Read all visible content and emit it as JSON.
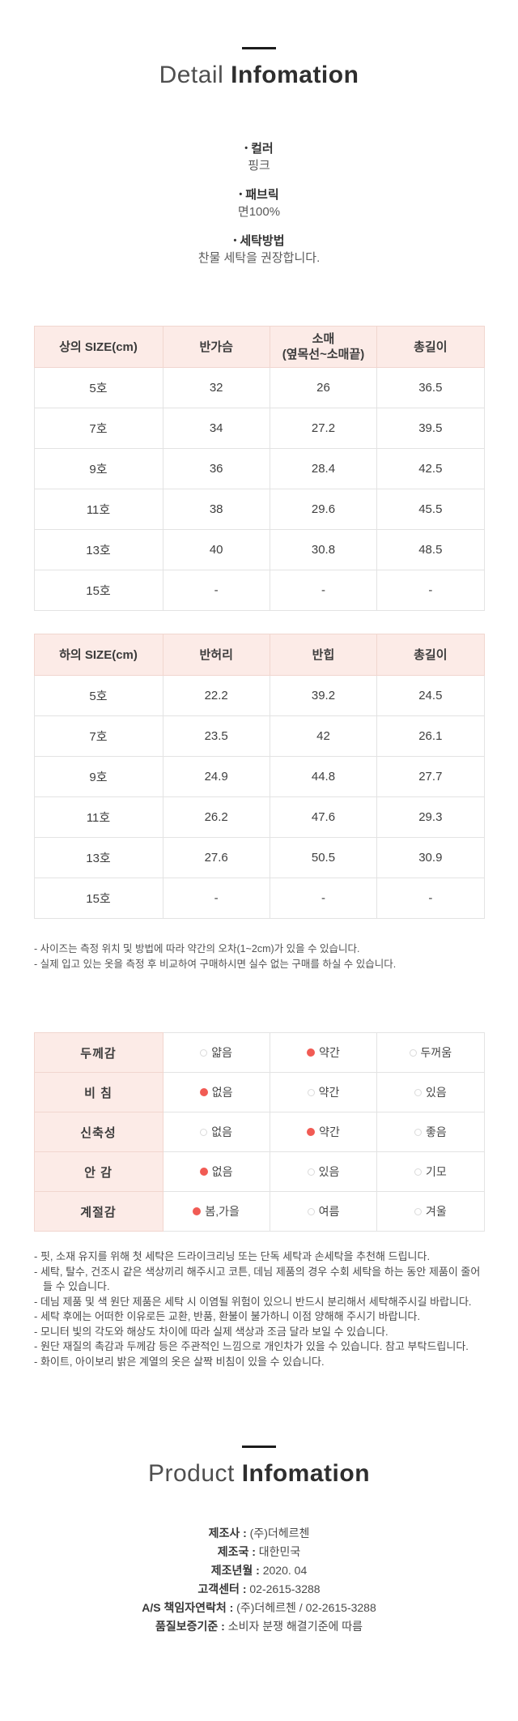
{
  "detail": {
    "title_light": "Detail",
    "title_bold": "Infomation",
    "bullet": "•",
    "specs": [
      {
        "label": "컬러",
        "value": "핑크"
      },
      {
        "label": "패브릭",
        "value": "면100%"
      },
      {
        "label": "세탁방법",
        "value": "찬물 세탁을 권장합니다."
      }
    ]
  },
  "size_tables": [
    {
      "headers": [
        "상의 SIZE(cm)",
        "반가슴",
        "소매\n(옆목선~소매끝)",
        "총길이"
      ],
      "rows": [
        [
          "5호",
          "32",
          "26",
          "36.5"
        ],
        [
          "7호",
          "34",
          "27.2",
          "39.5"
        ],
        [
          "9호",
          "36",
          "28.4",
          "42.5"
        ],
        [
          "11호",
          "38",
          "29.6",
          "45.5"
        ],
        [
          "13호",
          "40",
          "30.8",
          "48.5"
        ],
        [
          "15호",
          "-",
          "-",
          "-"
        ]
      ]
    },
    {
      "headers": [
        "하의 SIZE(cm)",
        "반허리",
        "반힙",
        "총길이"
      ],
      "rows": [
        [
          "5호",
          "22.2",
          "39.2",
          "24.5"
        ],
        [
          "7호",
          "23.5",
          "42",
          "26.1"
        ],
        [
          "9호",
          "24.9",
          "44.8",
          "27.7"
        ],
        [
          "11호",
          "26.2",
          "47.6",
          "29.3"
        ],
        [
          "13호",
          "27.6",
          "50.5",
          "30.9"
        ],
        [
          "15호",
          "-",
          "-",
          "-"
        ]
      ]
    }
  ],
  "size_notes": [
    "- 사이즈는 측정 위치 및 방법에 따라 약간의 오차(1~2cm)가 있을 수 있습니다.",
    "- 실제 입고 있는 옷을 측정 후 비교하여 구매하시면 실수 없는 구매를 하실 수 있습니다."
  ],
  "feature_table": {
    "rows": [
      {
        "label": "두께감",
        "options": [
          {
            "text": "얇음",
            "selected": false
          },
          {
            "text": "약간",
            "selected": true
          },
          {
            "text": "두꺼움",
            "selected": false
          }
        ]
      },
      {
        "label": "비 침",
        "options": [
          {
            "text": "없음",
            "selected": true
          },
          {
            "text": "약간",
            "selected": false
          },
          {
            "text": "있음",
            "selected": false
          }
        ]
      },
      {
        "label": "신축성",
        "options": [
          {
            "text": "없음",
            "selected": false
          },
          {
            "text": "약간",
            "selected": true
          },
          {
            "text": "좋음",
            "selected": false
          }
        ]
      },
      {
        "label": "안 감",
        "options": [
          {
            "text": "없음",
            "selected": true
          },
          {
            "text": "있음",
            "selected": false
          },
          {
            "text": "기모",
            "selected": false
          }
        ]
      },
      {
        "label": "계절감",
        "options": [
          {
            "text": "봄,가을",
            "selected": true
          },
          {
            "text": "여름",
            "selected": false
          },
          {
            "text": "겨울",
            "selected": false
          }
        ]
      }
    ]
  },
  "care_notes": [
    "- 핏, 소재 유지를 위해 첫 세탁은 드라이크리닝 또는 단독 세탁과 손세탁을 추천해 드립니다.",
    "- 세탁, 탈수, 건조시 같은 색상끼리 해주시고 코튼, 데님 제품의 경우 수회 세탁을 하는 동안 제품이 줄어들 수 있습니다.",
    "- 데님 제품 및 색 원단 제품은 세탁 시 이염될 위험이 있으니 반드시 분리해서 세탁해주시길 바랍니다.",
    "- 세탁 후에는 어떠한 이유로든 교환, 반품, 환불이 불가하니 이점 양해해 주시기 바랍니다.",
    "- 모니터 빛의 각도와 해상도 차이에 따라 실제 색상과 조금 달라 보일 수 있습니다.",
    "- 원단 재질의 촉감과 두께감 등은 주관적인 느낌으로 개인차가 있을 수 있습니다. 참고 부탁드립니다.",
    "- 화이트, 아이보리 밝은 계열의 옷은 살짝 비침이 있을 수 있습니다."
  ],
  "product": {
    "title_light": "Product",
    "title_bold": "Infomation",
    "separator": " : ",
    "fields": [
      {
        "label": "제조사",
        "value": "(주)더헤르첸"
      },
      {
        "label": "제조국",
        "value": "대한민국"
      },
      {
        "label": "제조년월",
        "value": "2020. 04"
      },
      {
        "label": "고객센터",
        "value": "02-2615-3288"
      },
      {
        "label": "A/S 책임자연락처",
        "value": "(주)더헤르첸 / 02-2615-3288"
      },
      {
        "label": "품질보증기준",
        "value": "소비자 분쟁 해결기준에 따름"
      }
    ]
  },
  "colors": {
    "header_pink": "#fcebe7",
    "header_border_pink": "#f1d6cf",
    "body_border_gray": "#e3e3e3",
    "radio_selected_red": "#f15b54",
    "title_dark": "#2e2e2e"
  }
}
